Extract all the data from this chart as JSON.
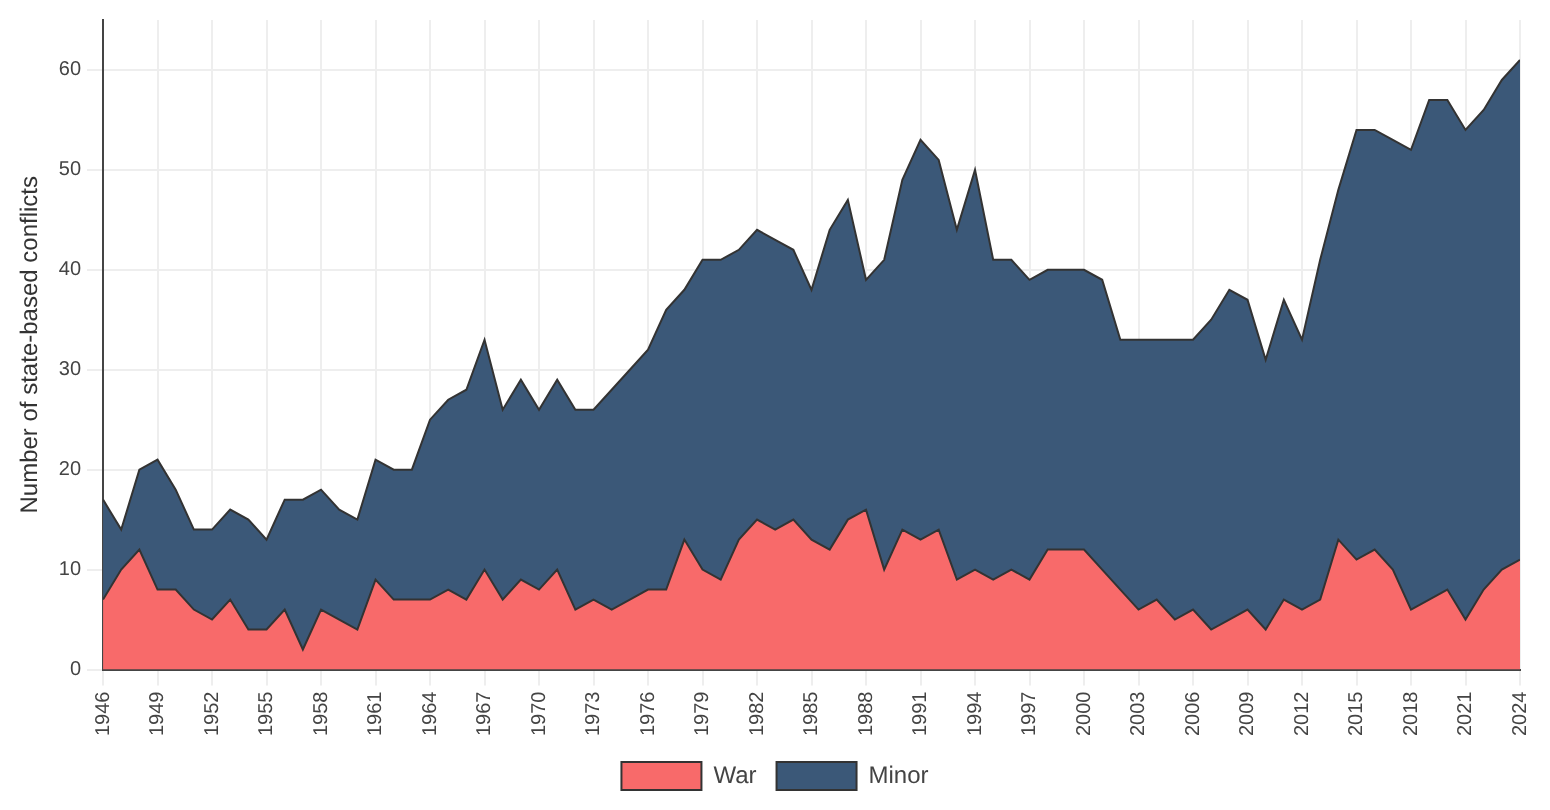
{
  "chart_data": {
    "type": "area",
    "stacked": true,
    "ylabel": "Number of state-based conflicts",
    "x": [
      1946,
      1947,
      1948,
      1949,
      1950,
      1951,
      1952,
      1953,
      1954,
      1955,
      1956,
      1957,
      1958,
      1959,
      1960,
      1961,
      1962,
      1963,
      1964,
      1965,
      1966,
      1967,
      1968,
      1969,
      1970,
      1971,
      1972,
      1973,
      1974,
      1975,
      1976,
      1977,
      1978,
      1979,
      1980,
      1981,
      1982,
      1983,
      1984,
      1985,
      1986,
      1987,
      1988,
      1989,
      1990,
      1991,
      1992,
      1993,
      1994,
      1995,
      1996,
      1997,
      1998,
      1999,
      2000,
      2001,
      2002,
      2003,
      2004,
      2005,
      2006,
      2007,
      2008,
      2009,
      2010,
      2011,
      2012,
      2013,
      2014,
      2015,
      2016,
      2017,
      2018,
      2019,
      2020,
      2021,
      2022,
      2023,
      2024
    ],
    "series": [
      {
        "name": "War",
        "color": "#f86a6a",
        "values": [
          7,
          10,
          12,
          8,
          8,
          6,
          5,
          7,
          4,
          4,
          6,
          2,
          6,
          5,
          4,
          9,
          7,
          7,
          7,
          8,
          7,
          10,
          7,
          9,
          8,
          10,
          6,
          7,
          6,
          7,
          8,
          8,
          13,
          10,
          9,
          13,
          15,
          14,
          15,
          13,
          12,
          15,
          16,
          10,
          14,
          13,
          14,
          9,
          10,
          9,
          10,
          9,
          12,
          12,
          12,
          10,
          8,
          6,
          7,
          5,
          6,
          4,
          5,
          6,
          4,
          7,
          6,
          7,
          13,
          11,
          12,
          10,
          6,
          7,
          8,
          5,
          8,
          10,
          11
        ]
      },
      {
        "name": "Minor",
        "color": "#3b5878",
        "values": [
          10,
          4,
          8,
          13,
          10,
          8,
          9,
          9,
          11,
          9,
          11,
          15,
          12,
          11,
          11,
          12,
          13,
          13,
          18,
          19,
          21,
          23,
          19,
          20,
          18,
          19,
          20,
          19,
          22,
          23,
          24,
          28,
          25,
          31,
          32,
          29,
          29,
          29,
          27,
          25,
          32,
          32,
          23,
          31,
          35,
          40,
          37,
          35,
          40,
          32,
          31,
          30,
          28,
          28,
          28,
          29,
          25,
          27,
          26,
          28,
          27,
          31,
          33,
          31,
          27,
          30,
          27,
          34,
          35,
          43,
          42,
          43,
          46,
          50,
          49,
          49,
          48,
          49,
          50
        ]
      }
    ],
    "xlim": [
      1946,
      2024
    ],
    "xticks": [
      1946,
      1949,
      1952,
      1955,
      1958,
      1961,
      1964,
      1967,
      1970,
      1973,
      1976,
      1979,
      1982,
      1985,
      1988,
      1991,
      1994,
      1997,
      2000,
      2003,
      2006,
      2009,
      2012,
      2015,
      2018,
      2021,
      2024
    ],
    "ylim": [
      0,
      65
    ],
    "yticks": [
      0,
      10,
      20,
      30,
      40,
      50,
      60
    ],
    "grid": true,
    "legend": "bottom"
  }
}
